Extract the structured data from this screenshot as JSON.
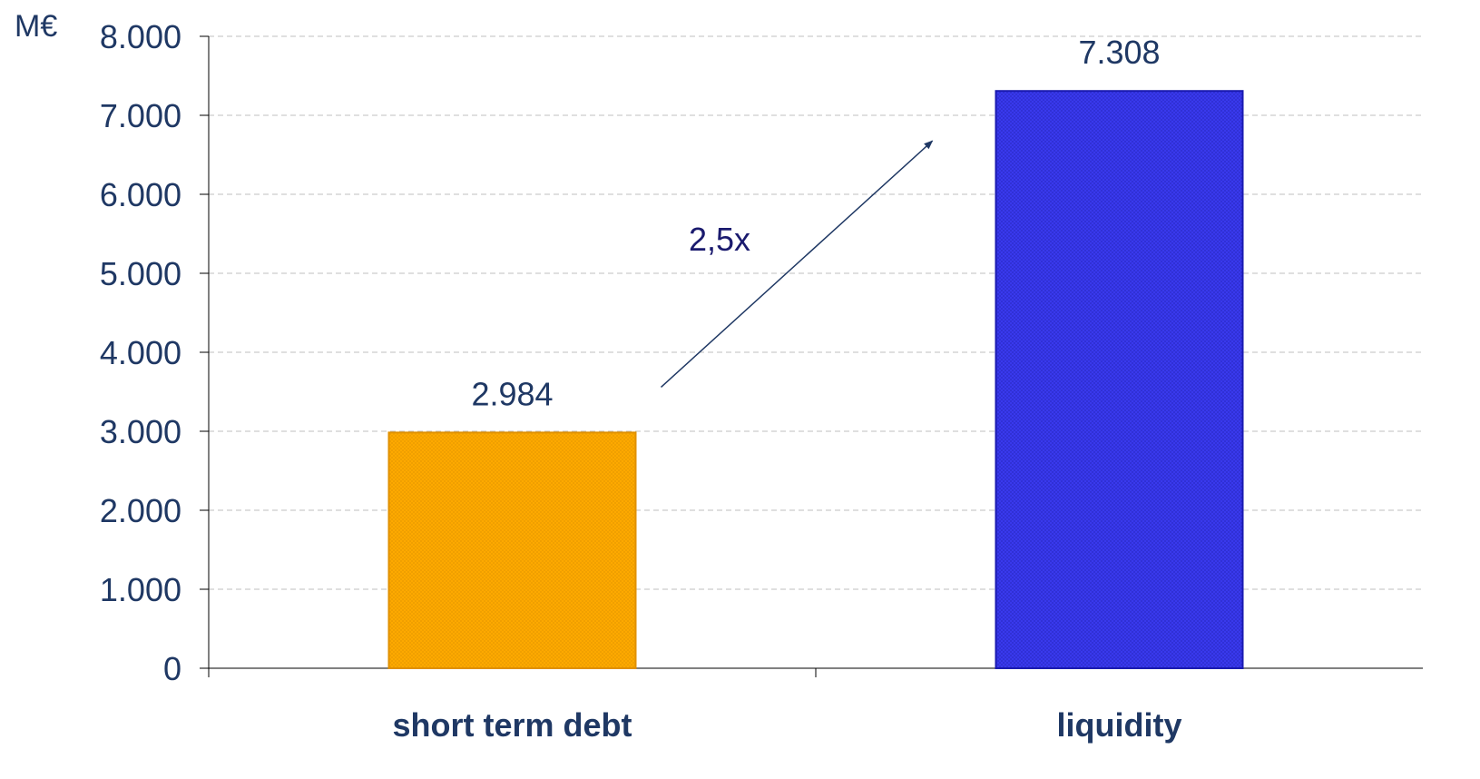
{
  "chart_data": {
    "type": "bar",
    "unit_label": "M€",
    "categories": [
      "short term debt",
      "liquidity"
    ],
    "values": [
      2984,
      7308
    ],
    "value_labels": [
      "2.984",
      "7.308"
    ],
    "ylim": [
      0,
      8000
    ],
    "yticks": [
      0,
      1000,
      2000,
      3000,
      4000,
      5000,
      6000,
      7000,
      8000
    ],
    "ytick_labels": [
      "0",
      "1.000",
      "2.000",
      "3.000",
      "4.000",
      "5.000",
      "6.000",
      "7.000",
      "8.000"
    ],
    "grid": true,
    "bar_colors": [
      "#FFAA00",
      "#3333EE"
    ],
    "bar_edge_colors": [
      "#E09000",
      "#1A1AB0"
    ],
    "annotation": {
      "text": "2,5x",
      "from_category": "short term debt",
      "to_category": "liquidity"
    },
    "text_color": "#1F3864",
    "arrow_color": "#1F3864"
  }
}
